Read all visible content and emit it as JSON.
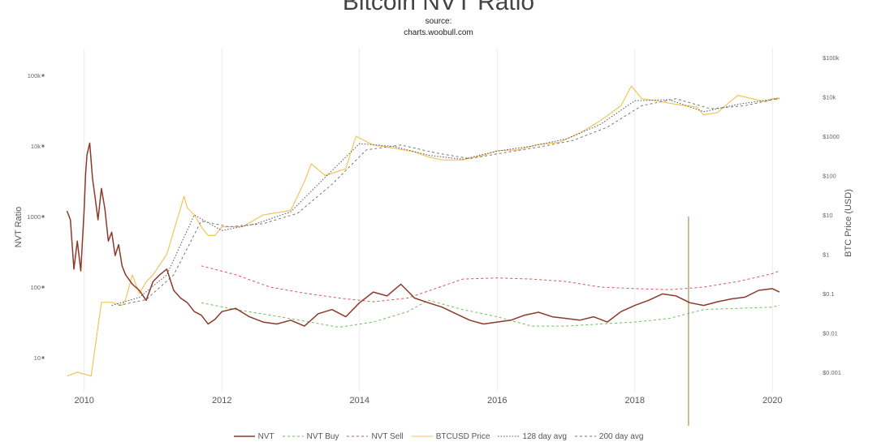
{
  "chart_data": {
    "type": "line",
    "title": "Bitcoin NVT Ratio",
    "subtitle_lines": [
      "source:",
      "charts.woobull.com"
    ],
    "ylabel_left": "NVT Ratio",
    "ylabel_right": "BTC Price (USD)",
    "y_scale_left": "log",
    "y_scale_right": "log",
    "ylim_left": [
      5,
      100000
    ],
    "ylim_right": [
      0.0005,
      100000
    ],
    "xlim": [
      2009.75,
      2020.15
    ],
    "x_ticks": [
      "2010",
      "2012",
      "2014",
      "2016",
      "2018",
      "2020"
    ],
    "x_tick_values": [
      2010,
      2012,
      2014,
      2016,
      2018,
      2020
    ],
    "y_ticks_left": [
      "10",
      "100",
      "1000",
      "10k",
      "100k"
    ],
    "y_tick_values_left": [
      10,
      100,
      1000,
      10000,
      100000
    ],
    "y_ticks_right": [
      "$0.001",
      "$0.01",
      "$0.1",
      "$1",
      "$10",
      "$100",
      "$1000",
      "$10k",
      "$100k"
    ],
    "y_tick_values_right": [
      0.001,
      0.01,
      0.1,
      1,
      10,
      100,
      1000,
      10000,
      100000
    ],
    "grid": "vertical only",
    "legend_position": "bottom",
    "series": [
      {
        "name": "NVT",
        "axis": "left",
        "color": "#8b3a2a",
        "style": "solid",
        "width": 1.5,
        "x": [
          2009.75,
          2009.8,
          2009.85,
          2009.9,
          2009.95,
          2010.0,
          2010.02,
          2010.04,
          2010.08,
          2010.12,
          2010.16,
          2010.2,
          2010.25,
          2010.3,
          2010.35,
          2010.4,
          2010.45,
          2010.5,
          2010.55,
          2010.6,
          2010.7,
          2010.8,
          2010.9,
          2011.0,
          2011.1,
          2011.2,
          2011.3,
          2011.4,
          2011.5,
          2011.6,
          2011.7,
          2011.8,
          2011.9,
          2012.0,
          2012.2,
          2012.4,
          2012.6,
          2012.8,
          2013.0,
          2013.2,
          2013.4,
          2013.6,
          2013.8,
          2014.0,
          2014.2,
          2014.4,
          2014.6,
          2014.8,
          2015.0,
          2015.2,
          2015.4,
          2015.6,
          2015.8,
          2016.0,
          2016.2,
          2016.4,
          2016.6,
          2016.8,
          2017.0,
          2017.2,
          2017.4,
          2017.6,
          2017.8,
          2018.0,
          2018.2,
          2018.4,
          2018.6,
          2018.8,
          2019.0,
          2019.2,
          2019.4,
          2019.6,
          2019.8,
          2020.0,
          2020.1
        ],
        "y": [
          1200,
          900,
          180,
          450,
          170,
          1300,
          4000,
          7500,
          11000,
          3500,
          1800,
          900,
          2500,
          1300,
          450,
          600,
          280,
          400,
          200,
          150,
          110,
          90,
          65,
          120,
          150,
          180,
          90,
          70,
          60,
          45,
          40,
          30,
          35,
          45,
          50,
          38,
          32,
          30,
          34,
          28,
          42,
          48,
          38,
          60,
          85,
          75,
          110,
          70,
          60,
          52,
          42,
          34,
          30,
          32,
          34,
          40,
          44,
          38,
          36,
          34,
          38,
          32,
          45,
          55,
          65,
          80,
          75,
          60,
          55,
          62,
          68,
          72,
          90,
          95,
          85
        ]
      },
      {
        "name": "NVT Buy",
        "axis": "left",
        "color": "#6bbf59",
        "style": "dashed",
        "width": 1,
        "x": [
          2011.7,
          2012.2,
          2012.7,
          2013.2,
          2013.7,
          2014.2,
          2014.7,
          2015.0,
          2015.5,
          2016.0,
          2016.5,
          2017.0,
          2017.5,
          2018.0,
          2018.5,
          2019.0,
          2019.5,
          2020.0,
          2020.1
        ],
        "y": [
          60,
          48,
          40,
          33,
          27,
          32,
          45,
          65,
          48,
          38,
          28,
          28,
          30,
          32,
          36,
          48,
          50,
          52,
          55
        ]
      },
      {
        "name": "NVT Sell",
        "axis": "left",
        "color": "#d9534f",
        "style": "dashed",
        "width": 1,
        "x": [
          2011.7,
          2012.2,
          2012.7,
          2013.2,
          2013.7,
          2014.2,
          2014.7,
          2015.0,
          2015.5,
          2016.0,
          2016.5,
          2017.0,
          2017.5,
          2018.0,
          2018.5,
          2019.0,
          2019.5,
          2020.0,
          2020.1
        ],
        "y": [
          200,
          150,
          100,
          82,
          70,
          62,
          70,
          88,
          130,
          135,
          130,
          120,
          100,
          95,
          92,
          100,
          120,
          155,
          170
        ]
      },
      {
        "name": "BTCUSD Price",
        "axis": "right",
        "color": "#f2c45a",
        "style": "solid",
        "width": 1.2,
        "x": [
          2009.75,
          2009.9,
          2010.0,
          2010.1,
          2010.25,
          2010.4,
          2010.55,
          2010.6,
          2010.7,
          2010.8,
          2010.9,
          2011.0,
          2011.2,
          2011.4,
          2011.45,
          2011.5,
          2011.6,
          2011.7,
          2011.8,
          2011.9,
          2012.0,
          2012.3,
          2012.6,
          2013.0,
          2013.2,
          2013.3,
          2013.5,
          2013.8,
          2013.95,
          2014.2,
          2014.5,
          2014.8,
          2015.0,
          2015.2,
          2015.5,
          2015.8,
          2016.0,
          2016.3,
          2016.6,
          2016.9,
          2017.2,
          2017.5,
          2017.8,
          2017.95,
          2018.1,
          2018.3,
          2018.6,
          2018.9,
          2019.0,
          2019.2,
          2019.4,
          2019.5,
          2019.7,
          2019.9,
          2020.0,
          2020.1
        ],
        "y": [
          0.0008,
          0.001,
          0.0009,
          0.0008,
          0.06,
          0.06,
          0.05,
          0.07,
          0.3,
          0.1,
          0.2,
          0.3,
          1,
          15,
          30,
          15,
          10,
          5,
          3,
          3,
          5,
          5,
          10,
          13,
          70,
          200,
          100,
          150,
          1000,
          600,
          500,
          400,
          300,
          250,
          250,
          330,
          430,
          450,
          620,
          700,
          1200,
          2500,
          6000,
          19000,
          9000,
          8000,
          6500,
          5500,
          3500,
          4000,
          8000,
          11000,
          9000,
          7500,
          9000,
          9500
        ]
      },
      {
        "name": "128 day avg",
        "axis": "right",
        "color": "#555555",
        "style": "dotted",
        "width": 1,
        "x": [
          2010.4,
          2010.8,
          2011.2,
          2011.6,
          2012.0,
          2012.5,
          2013.0,
          2013.5,
          2014.0,
          2014.5,
          2015.0,
          2015.5,
          2016.0,
          2016.5,
          2017.0,
          2017.5,
          2018.0,
          2018.5,
          2019.0,
          2019.5,
          2020.0,
          2020.1
        ],
        "y": [
          0.05,
          0.08,
          0.3,
          10,
          4,
          6,
          12,
          90,
          650,
          550,
          330,
          260,
          420,
          560,
          850,
          2000,
          8000,
          8500,
          4200,
          6500,
          8700,
          9000
        ]
      },
      {
        "name": "200 day avg",
        "axis": "right",
        "color": "#777777",
        "style": "dashed",
        "width": 1,
        "x": [
          2010.5,
          2010.9,
          2011.3,
          2011.7,
          2012.1,
          2012.6,
          2013.1,
          2013.6,
          2014.1,
          2014.6,
          2015.1,
          2015.6,
          2016.1,
          2016.6,
          2017.1,
          2017.6,
          2018.1,
          2018.6,
          2019.1,
          2019.6,
          2020.0,
          2020.1
        ],
        "y": [
          0.05,
          0.07,
          0.3,
          7,
          5,
          6,
          11,
          60,
          450,
          600,
          380,
          270,
          380,
          530,
          780,
          1700,
          6000,
          9000,
          5000,
          6000,
          8500,
          9000
        ]
      }
    ],
    "annotations": [
      {
        "type": "vertical-line",
        "x": 2018.78,
        "y_from": 30,
        "y_to": 1000,
        "color": "#b58a5a"
      }
    ]
  }
}
